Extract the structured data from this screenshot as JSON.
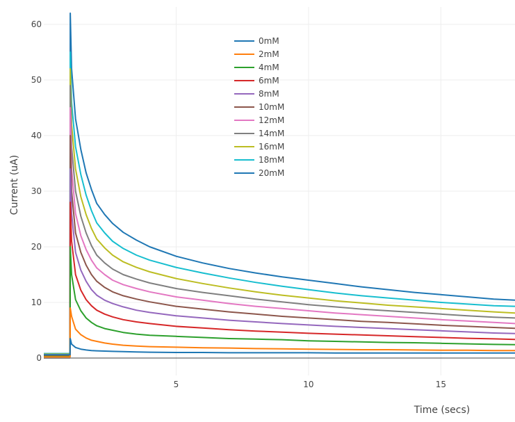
{
  "chart_data": {
    "type": "line",
    "title": "",
    "xlabel": "Time (secs)",
    "ylabel": "Current (uA)",
    "xlim": [
      0,
      17.8
    ],
    "ylim": [
      -1,
      62
    ],
    "xticks": [
      5,
      10,
      15
    ],
    "yticks": [
      0,
      10,
      20,
      30,
      40,
      50,
      60
    ],
    "grid": true,
    "legend": "top-center",
    "step_time": 1.0,
    "x": [
      0,
      0.5,
      0.99,
      1.05,
      1.2,
      1.4,
      1.6,
      1.8,
      2.0,
      2.3,
      2.6,
      3.0,
      3.5,
      4.0,
      5.0,
      6.0,
      7.0,
      8.0,
      9.0,
      10.0,
      11.0,
      12.0,
      13.0,
      14.0,
      15.0,
      16.0,
      17.0,
      17.8
    ],
    "series": [
      {
        "name": "0mM",
        "color": "#1f77b4",
        "peak": 3.5,
        "values": [
          0.6,
          0.6,
          0.6,
          2.5,
          1.9,
          1.6,
          1.45,
          1.35,
          1.3,
          1.25,
          1.2,
          1.15,
          1.1,
          1.05,
          1.0,
          1.0,
          0.95,
          0.95,
          0.95,
          0.95,
          0.9,
          0.9,
          0.9,
          0.9,
          0.9,
          0.9,
          0.9,
          0.9
        ]
      },
      {
        "name": "2mM",
        "color": "#ff7f0e",
        "peak": 9,
        "values": [
          0.2,
          0.2,
          0.2,
          7.5,
          5.2,
          4.2,
          3.6,
          3.2,
          3.0,
          2.7,
          2.5,
          2.3,
          2.15,
          2.05,
          1.95,
          1.85,
          1.8,
          1.7,
          1.65,
          1.6,
          1.55,
          1.5,
          1.5,
          1.45,
          1.4,
          1.4,
          1.35,
          1.35
        ]
      },
      {
        "name": "4mM",
        "color": "#2ca02c",
        "peak": 20,
        "values": [
          0.3,
          0.3,
          0.3,
          15,
          10.5,
          8.5,
          7.2,
          6.4,
          5.8,
          5.3,
          5.0,
          4.6,
          4.3,
          4.1,
          3.9,
          3.7,
          3.5,
          3.4,
          3.3,
          3.1,
          3.0,
          2.9,
          2.8,
          2.75,
          2.65,
          2.55,
          2.45,
          2.4
        ]
      },
      {
        "name": "6mM",
        "color": "#d62728",
        "peak": 28,
        "values": [
          0.4,
          0.4,
          0.4,
          21,
          15,
          12.2,
          10.5,
          9.4,
          8.6,
          7.9,
          7.4,
          6.9,
          6.5,
          6.2,
          5.7,
          5.4,
          5.1,
          4.85,
          4.65,
          4.45,
          4.3,
          4.15,
          4.0,
          3.85,
          3.7,
          3.55,
          3.45,
          3.35
        ]
      },
      {
        "name": "8mM",
        "color": "#9467bd",
        "peak": 34,
        "values": [
          0.5,
          0.5,
          0.5,
          26,
          19,
          15.8,
          13.8,
          12.3,
          11.3,
          10.4,
          9.8,
          9.2,
          8.6,
          8.2,
          7.6,
          7.2,
          6.8,
          6.5,
          6.2,
          5.95,
          5.7,
          5.5,
          5.3,
          5.1,
          4.9,
          4.7,
          4.5,
          4.4
        ]
      },
      {
        "name": "10mM",
        "color": "#8c564b",
        "peak": 40,
        "values": [
          0.5,
          0.5,
          0.5,
          30,
          22.5,
          19,
          16.7,
          15.0,
          13.8,
          12.7,
          11.9,
          11.2,
          10.6,
          10.1,
          9.3,
          8.8,
          8.3,
          7.9,
          7.5,
          7.2,
          6.9,
          6.6,
          6.4,
          6.15,
          5.9,
          5.7,
          5.5,
          5.35
        ]
      },
      {
        "name": "12mM",
        "color": "#e377c2",
        "peak": 45,
        "values": [
          0.6,
          0.6,
          0.6,
          34,
          26,
          22,
          19.5,
          17.6,
          16.2,
          15.0,
          14.0,
          13.2,
          12.5,
          11.9,
          11.0,
          10.4,
          9.8,
          9.3,
          8.9,
          8.5,
          8.1,
          7.8,
          7.5,
          7.2,
          6.9,
          6.65,
          6.4,
          6.2
        ]
      },
      {
        "name": "14mM",
        "color": "#7f7f7f",
        "peak": 49,
        "values": [
          0.0,
          0.0,
          0.0,
          38,
          30,
          25.5,
          22.5,
          20.2,
          18.5,
          17.1,
          16.0,
          15.0,
          14.2,
          13.5,
          12.5,
          11.8,
          11.2,
          10.6,
          10.1,
          9.6,
          9.2,
          8.8,
          8.5,
          8.2,
          7.9,
          7.6,
          7.35,
          7.2
        ]
      },
      {
        "name": "16mM",
        "color": "#bcbd22",
        "peak": 52,
        "values": [
          0.7,
          0.7,
          0.7,
          42,
          34,
          29,
          25.8,
          23.3,
          21.4,
          19.8,
          18.5,
          17.3,
          16.3,
          15.5,
          14.3,
          13.4,
          12.6,
          11.9,
          11.3,
          10.8,
          10.3,
          9.9,
          9.5,
          9.2,
          8.9,
          8.6,
          8.3,
          8.1
        ]
      },
      {
        "name": "18mM",
        "color": "#17becf",
        "peak": 55,
        "values": [
          0.8,
          0.8,
          0.8,
          46,
          38,
          33,
          29.3,
          26.5,
          24.3,
          22.5,
          21.0,
          19.7,
          18.5,
          17.6,
          16.3,
          15.3,
          14.4,
          13.6,
          12.9,
          12.3,
          11.7,
          11.2,
          10.8,
          10.4,
          10.0,
          9.7,
          9.4,
          9.3
        ]
      },
      {
        "name": "20mM",
        "color": "#1f77b4",
        "peak": 62,
        "values": [
          0.8,
          0.8,
          0.8,
          52,
          43,
          37.5,
          33.3,
          30.3,
          27.8,
          25.8,
          24.2,
          22.6,
          21.2,
          20.0,
          18.3,
          17.1,
          16.1,
          15.3,
          14.6,
          14.0,
          13.4,
          12.8,
          12.3,
          11.8,
          11.4,
          11.0,
          10.6,
          10.4
        ]
      }
    ]
  }
}
